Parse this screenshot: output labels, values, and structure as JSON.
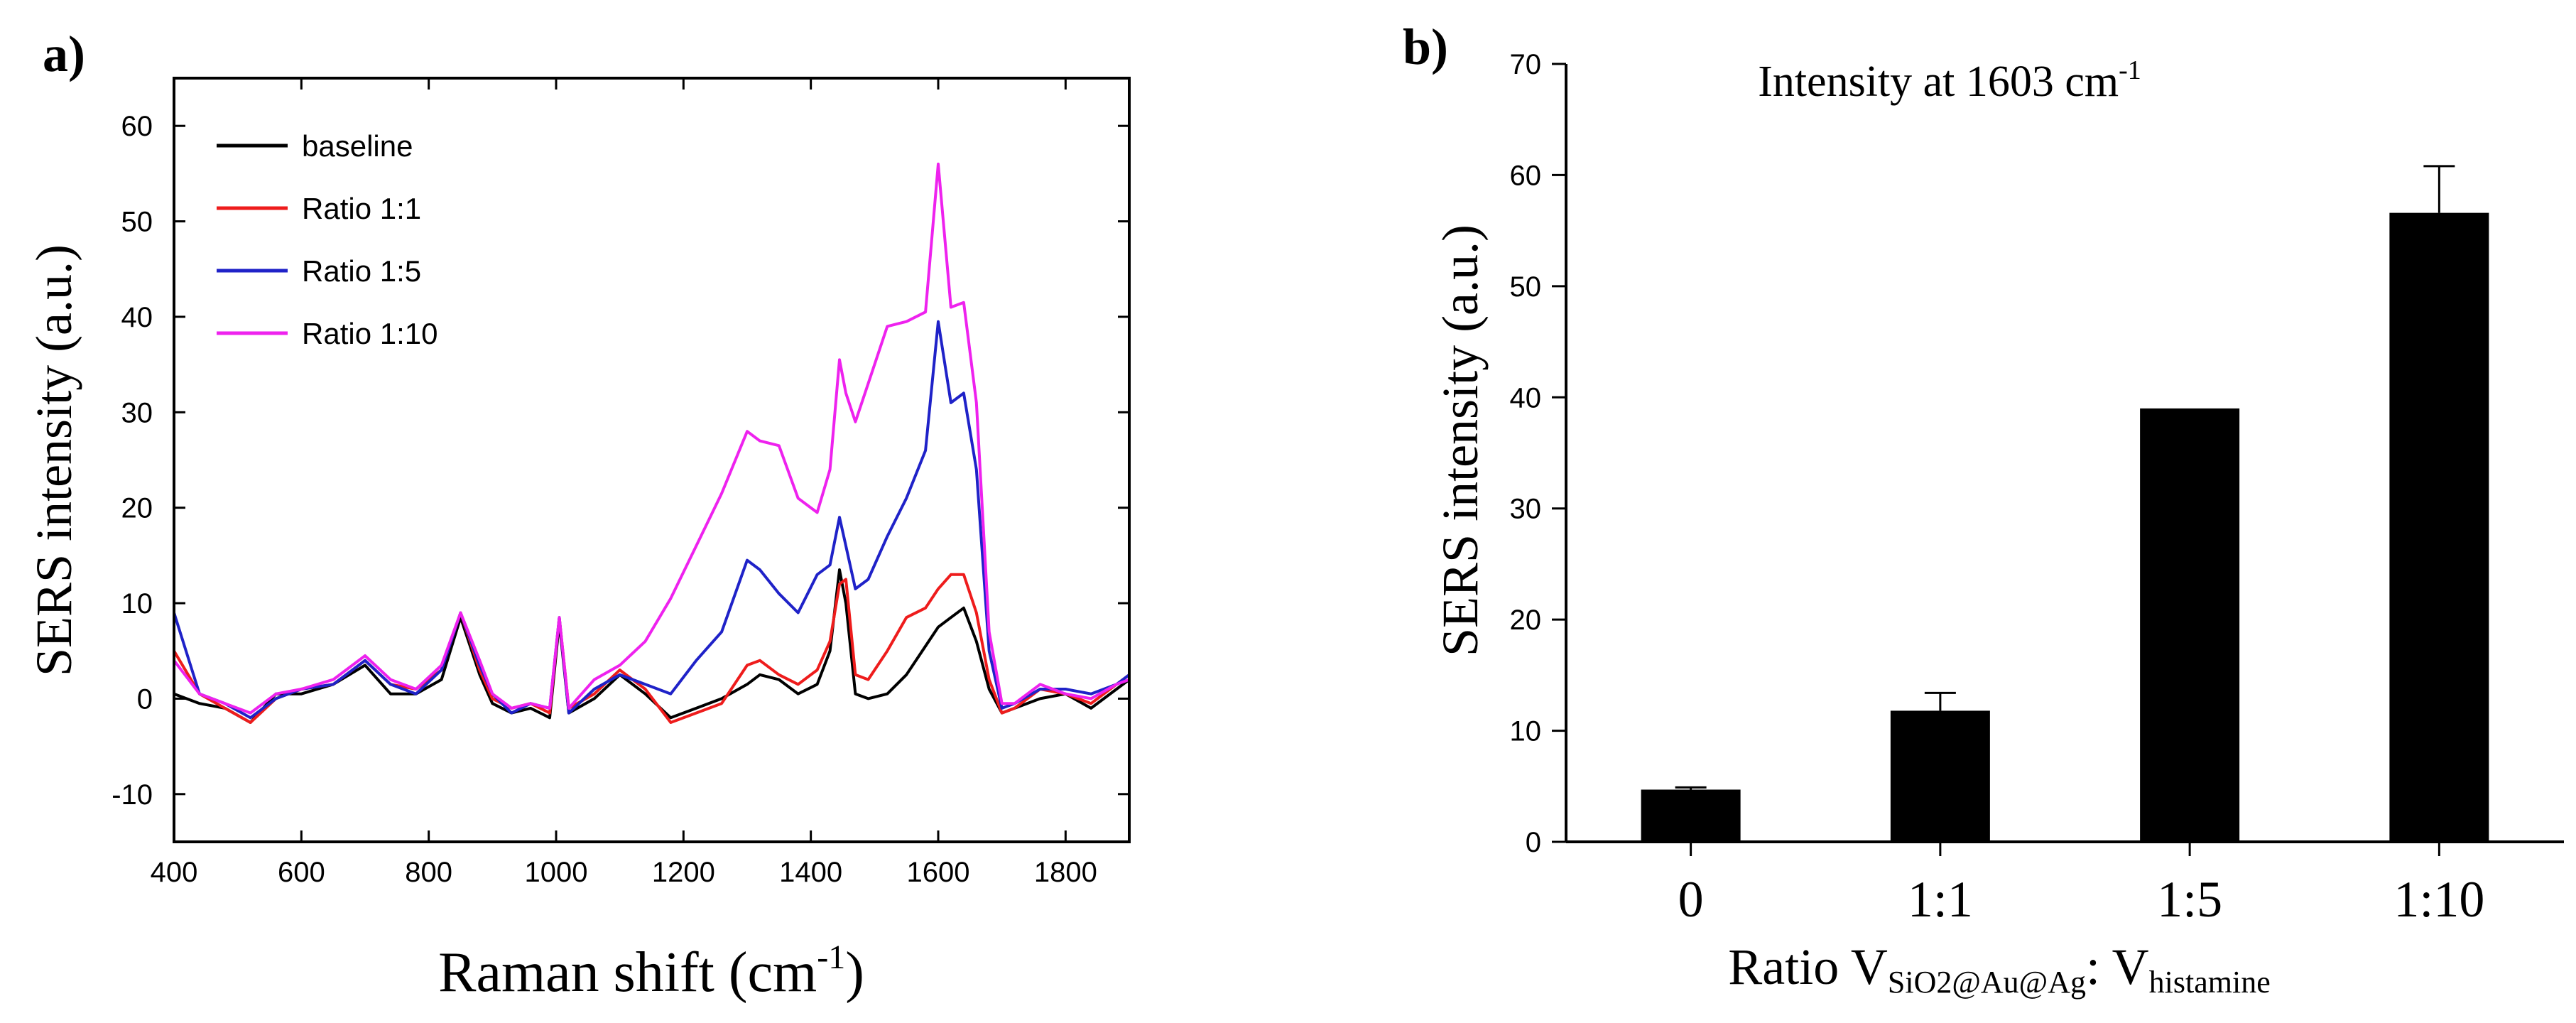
{
  "chart_data": [
    {
      "panel_label": "a)",
      "type": "line",
      "title": "",
      "xlabel_main": "Raman shift (cm",
      "xlabel_sup": "-1",
      "xlabel_end": ")",
      "ylabel": "SERS intensity (a.u.)",
      "xlim": [
        400,
        1900
      ],
      "ylim": [
        -15,
        65
      ],
      "xticks": [
        400,
        600,
        800,
        1000,
        1200,
        1400,
        1600,
        1800
      ],
      "xtick_labels": [
        "400",
        "600",
        "800",
        "1000",
        "1200",
        "1400",
        "1600",
        "1800"
      ],
      "yticks": [
        -10,
        0,
        10,
        20,
        30,
        40,
        50,
        60
      ],
      "ytick_labels": [
        "-10",
        "0",
        "10",
        "20",
        "30",
        "40",
        "50",
        "60"
      ],
      "legend_position": "top-left",
      "series": [
        {
          "name": "baseline",
          "color": "#000000",
          "x": [
            400,
            440,
            480,
            520,
            560,
            600,
            650,
            700,
            740,
            780,
            820,
            850,
            880,
            900,
            930,
            960,
            990,
            1005,
            1020,
            1060,
            1100,
            1140,
            1180,
            1220,
            1260,
            1300,
            1320,
            1350,
            1380,
            1410,
            1430,
            1445,
            1455,
            1470,
            1490,
            1520,
            1550,
            1580,
            1600,
            1620,
            1640,
            1660,
            1680,
            1700,
            1720,
            1760,
            1800,
            1840,
            1880,
            1900
          ],
          "y": [
            0.5,
            -0.5,
            -1.0,
            -2.5,
            0.5,
            0.5,
            1.5,
            3.5,
            0.5,
            0.5,
            2.0,
            8.5,
            2.5,
            -0.5,
            -1.5,
            -1.0,
            -2.0,
            8.0,
            -1.5,
            0.0,
            2.5,
            0.5,
            -2.0,
            -1.0,
            0.0,
            1.5,
            2.5,
            2.0,
            0.5,
            1.5,
            5.0,
            13.5,
            10.0,
            0.5,
            0.0,
            0.5,
            2.5,
            5.5,
            7.5,
            8.5,
            9.5,
            6.0,
            1.0,
            -1.5,
            -1.0,
            0.0,
            0.5,
            -1.0,
            1.0,
            2.0
          ]
        },
        {
          "name": "Ratio 1:1",
          "color": "#ee1c1c",
          "x": [
            400,
            440,
            480,
            520,
            560,
            600,
            650,
            700,
            740,
            780,
            820,
            850,
            880,
            900,
            930,
            960,
            990,
            1005,
            1020,
            1060,
            1100,
            1140,
            1180,
            1220,
            1260,
            1300,
            1320,
            1350,
            1380,
            1410,
            1430,
            1445,
            1455,
            1470,
            1490,
            1520,
            1550,
            1580,
            1600,
            1620,
            1640,
            1660,
            1680,
            1700,
            1720,
            1760,
            1800,
            1840,
            1880,
            1900
          ],
          "y": [
            5.0,
            0.5,
            -1.0,
            -2.5,
            0.0,
            1.0,
            1.5,
            4.0,
            1.5,
            1.0,
            3.0,
            9.0,
            3.0,
            0.0,
            -1.0,
            -0.5,
            -1.5,
            8.5,
            -1.0,
            0.5,
            3.0,
            1.0,
            -2.5,
            -1.5,
            -0.5,
            3.5,
            4.0,
            2.5,
            1.5,
            3.0,
            6.0,
            12.0,
            12.5,
            2.5,
            2.0,
            5.0,
            8.5,
            9.5,
            11.5,
            13.0,
            13.0,
            9.0,
            2.0,
            -1.5,
            -1.0,
            1.0,
            0.5,
            -0.5,
            1.5,
            2.5
          ]
        },
        {
          "name": "Ratio 1:5",
          "color": "#1f22c8",
          "x": [
            400,
            440,
            480,
            520,
            560,
            600,
            650,
            700,
            740,
            780,
            820,
            850,
            880,
            900,
            930,
            960,
            990,
            1005,
            1020,
            1060,
            1100,
            1140,
            1180,
            1220,
            1260,
            1300,
            1320,
            1350,
            1380,
            1410,
            1430,
            1445,
            1455,
            1470,
            1490,
            1520,
            1550,
            1580,
            1600,
            1620,
            1640,
            1660,
            1680,
            1700,
            1720,
            1760,
            1800,
            1840,
            1880,
            1900
          ],
          "y": [
            9.0,
            0.5,
            -0.5,
            -2.0,
            0.0,
            1.0,
            1.5,
            4.0,
            1.5,
            0.5,
            3.0,
            9.0,
            3.5,
            0.5,
            -1.5,
            -0.5,
            -1.0,
            8.5,
            -1.5,
            1.0,
            2.5,
            1.5,
            0.5,
            4.0,
            7.0,
            14.5,
            13.5,
            11.0,
            9.0,
            13.0,
            14.0,
            19.0,
            16.0,
            11.5,
            12.5,
            17.0,
            21.0,
            26.0,
            39.5,
            31.0,
            32.0,
            24.0,
            5.0,
            -1.0,
            -0.5,
            1.0,
            1.0,
            0.5,
            1.5,
            2.5
          ]
        },
        {
          "name": "Ratio 1:10",
          "color": "#ee22ee",
          "x": [
            400,
            440,
            480,
            520,
            560,
            600,
            650,
            700,
            740,
            780,
            820,
            850,
            880,
            900,
            930,
            960,
            990,
            1005,
            1020,
            1060,
            1100,
            1140,
            1180,
            1220,
            1260,
            1300,
            1320,
            1350,
            1380,
            1410,
            1430,
            1445,
            1455,
            1470,
            1490,
            1520,
            1550,
            1580,
            1600,
            1620,
            1640,
            1660,
            1680,
            1700,
            1720,
            1760,
            1800,
            1840,
            1880,
            1900
          ],
          "y": [
            4.0,
            0.5,
            -0.5,
            -1.5,
            0.5,
            1.0,
            2.0,
            4.5,
            2.0,
            1.0,
            3.5,
            9.0,
            4.0,
            0.5,
            -1.0,
            -0.5,
            -1.0,
            8.5,
            -1.0,
            2.0,
            3.5,
            6.0,
            10.5,
            16.0,
            21.5,
            28.0,
            27.0,
            26.5,
            21.0,
            19.5,
            24.0,
            35.5,
            32.0,
            29.0,
            33.0,
            39.0,
            39.5,
            40.5,
            56.0,
            41.0,
            41.5,
            31.0,
            7.0,
            -0.5,
            -0.5,
            1.5,
            0.5,
            0.0,
            1.5,
            2.0
          ]
        }
      ]
    },
    {
      "panel_label": "b)",
      "type": "bar",
      "title_main": "Intensity at 1603 cm",
      "title_sup": "-1",
      "xlabel_prefix": "Ratio V",
      "xlabel_sub1": "SiO2@Au@Ag",
      "xlabel_mid": ": V",
      "xlabel_sub2": "histamine",
      "ylabel": "SERS intensity (a.u.)",
      "ylim": [
        0,
        70
      ],
      "yticks": [
        0,
        10,
        20,
        30,
        40,
        50,
        60,
        70
      ],
      "ytick_labels": [
        "0",
        "10",
        "20",
        "30",
        "40",
        "50",
        "60",
        "70"
      ],
      "categories": [
        "0",
        "1:1",
        "1:5",
        "1:10"
      ],
      "values": [
        4.7,
        11.8,
        39.0,
        56.6
      ],
      "errors": [
        0.2,
        1.6,
        0.0,
        4.2
      ],
      "bar_color": "#000000"
    }
  ]
}
